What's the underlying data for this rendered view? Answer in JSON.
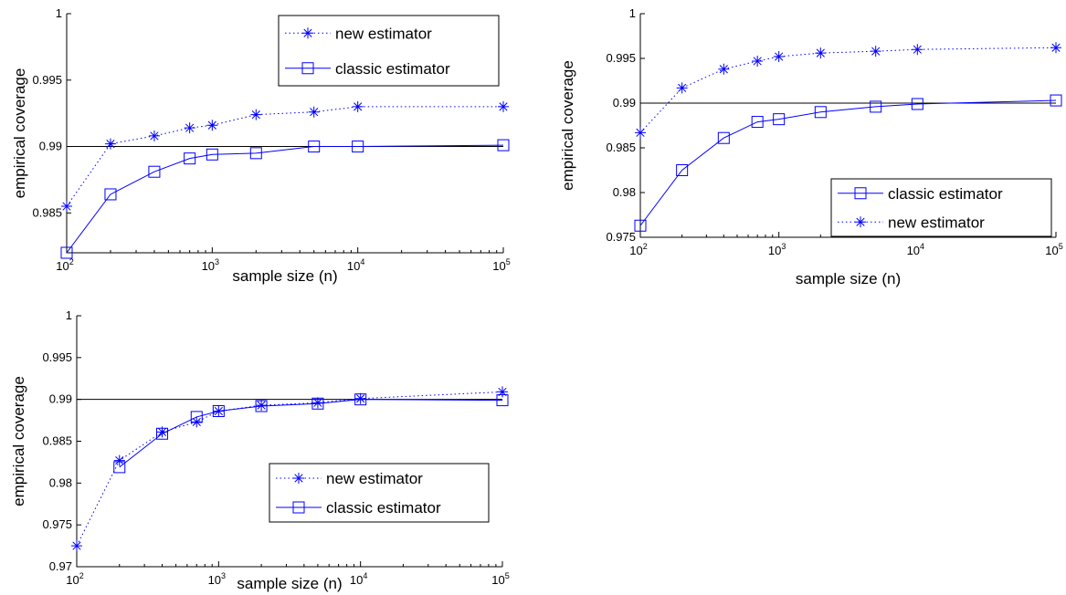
{
  "colors": {
    "series": "#0000ff",
    "reference": "#000000",
    "axis": "#000000",
    "background": "#ffffff"
  },
  "chart_data": [
    {
      "type": "line",
      "xscale": "log",
      "xlabel": "sample size (n)",
      "ylabel": "empirical coverage",
      "xlim": [
        100,
        100000
      ],
      "ylim": [
        0.982,
        1
      ],
      "yticks": [
        "0.985",
        "0.99",
        "0.995",
        "1"
      ],
      "xticks": [
        {
          "base": "10",
          "exp": "2"
        },
        {
          "base": "10",
          "exp": "3"
        },
        {
          "base": "10",
          "exp": "4"
        },
        {
          "base": "10",
          "exp": "5"
        }
      ],
      "reference_line": 0.99,
      "legend_position": "top-right",
      "legend_order": [
        "new",
        "classic"
      ],
      "x": [
        100,
        200,
        400,
        700,
        1000,
        2000,
        5000,
        10000,
        100000
      ],
      "series": [
        {
          "key": "new",
          "name": "new estimator",
          "marker": "asterisk",
          "linestyle": "dotted",
          "values": [
            0.9855,
            0.9902,
            0.9908,
            0.9914,
            0.9916,
            0.9924,
            0.9926,
            0.993,
            0.993
          ]
        },
        {
          "key": "classic",
          "name": "classic estimator",
          "marker": "square",
          "linestyle": "solid",
          "values": [
            0.982,
            0.9864,
            0.9881,
            0.9891,
            0.9894,
            0.9895,
            0.99,
            0.99,
            0.9901
          ]
        }
      ]
    },
    {
      "type": "line",
      "xscale": "log",
      "xlabel": "sample size (n)",
      "ylabel": "empirical coverage",
      "xlim": [
        100,
        100000
      ],
      "ylim": [
        0.975,
        1
      ],
      "yticks": [
        "0.975",
        "0.98",
        "0.985",
        "0.99",
        "0.995",
        "1"
      ],
      "xticks": [
        {
          "base": "10",
          "exp": "2"
        },
        {
          "base": "10",
          "exp": "3"
        },
        {
          "base": "10",
          "exp": "4"
        },
        {
          "base": "10",
          "exp": "5"
        }
      ],
      "reference_line": 0.99,
      "legend_position": "bottom-right",
      "legend_order": [
        "classic",
        "new"
      ],
      "x": [
        100,
        200,
        400,
        700,
        1000,
        2000,
        5000,
        10000,
        100000
      ],
      "series": [
        {
          "key": "new",
          "name": "new estimator",
          "marker": "asterisk",
          "linestyle": "dotted",
          "values": [
            0.9867,
            0.9917,
            0.9938,
            0.9947,
            0.9952,
            0.9956,
            0.9958,
            0.996,
            0.9962
          ]
        },
        {
          "key": "classic",
          "name": "classic estimator",
          "marker": "square",
          "linestyle": "solid",
          "values": [
            0.9763,
            0.9825,
            0.9861,
            0.9879,
            0.9882,
            0.989,
            0.9896,
            0.9899,
            0.9903
          ]
        }
      ]
    },
    {
      "type": "line",
      "xscale": "log",
      "xlabel": "sample size (n)",
      "ylabel": "empirical coverage",
      "xlim": [
        100,
        100000
      ],
      "ylim": [
        0.97,
        1
      ],
      "yticks": [
        "0.97",
        "0.975",
        "0.98",
        "0.985",
        "0.99",
        "0.995",
        "1"
      ],
      "xticks": [
        {
          "base": "10",
          "exp": "2"
        },
        {
          "base": "10",
          "exp": "3"
        },
        {
          "base": "10",
          "exp": "4"
        },
        {
          "base": "10",
          "exp": "5"
        }
      ],
      "reference_line": 0.99,
      "legend_position": "bottom-right",
      "legend_order": [
        "new",
        "classic"
      ],
      "x_new": [
        100,
        200,
        400,
        700,
        1000,
        2000,
        5000,
        10000,
        100000
      ],
      "x_classic": [
        200,
        400,
        700,
        1000,
        2000,
        5000,
        10000,
        100000
      ],
      "series": [
        {
          "key": "new",
          "name": "new estimator",
          "marker": "asterisk",
          "linestyle": "dotted",
          "values": [
            0.9725,
            0.9827,
            0.9861,
            0.9873,
            0.9886,
            0.9893,
            0.9896,
            0.9901,
            0.9909
          ]
        },
        {
          "key": "classic",
          "name": "classic estimator",
          "marker": "square",
          "linestyle": "solid",
          "values": [
            0.9819,
            0.9859,
            0.9879,
            0.9886,
            0.9892,
            0.9895,
            0.99,
            0.9899
          ]
        }
      ]
    }
  ]
}
